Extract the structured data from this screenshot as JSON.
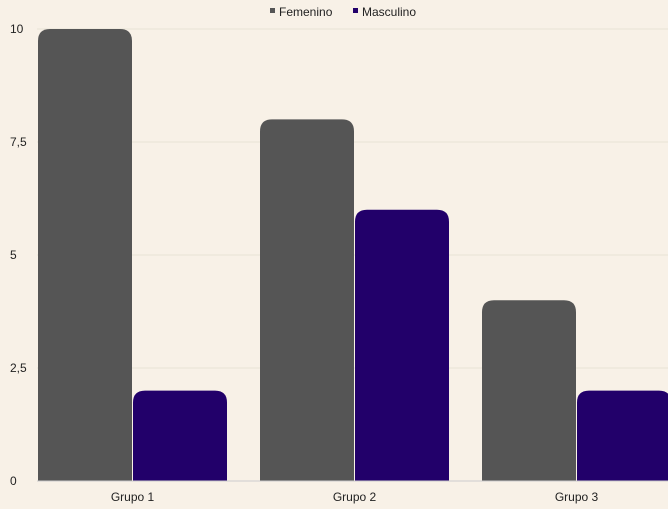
{
  "chart_data": {
    "type": "bar",
    "categories": [
      "Grupo 1",
      "Grupo 2",
      "Grupo 3"
    ],
    "series": [
      {
        "name": "Femenino",
        "values": [
          10,
          8,
          4
        ],
        "color": "#555555"
      },
      {
        "name": "Masculino",
        "values": [
          2,
          6,
          2
        ],
        "color": "#22006a"
      }
    ],
    "yticks": [
      "0",
      "2,5",
      "5",
      "7,5",
      "10"
    ],
    "ytick_values": [
      0,
      2.5,
      5,
      7.5,
      10
    ],
    "ylim": [
      0,
      10
    ],
    "grid": true,
    "legend_position": "top-center",
    "title": "",
    "xlabel": "",
    "ylabel": ""
  }
}
